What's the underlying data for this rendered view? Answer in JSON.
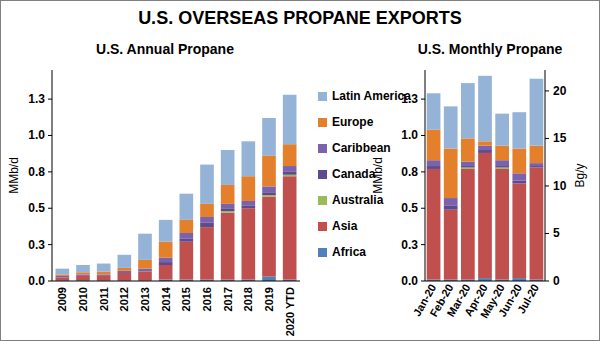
{
  "title": "U.S. OVERSEAS PROPANE EXPORTS",
  "chart_data": [
    {
      "type": "bar",
      "stacked": true,
      "title": "U.S. Annual Propane",
      "ylabel": "MMb/d",
      "grid": false,
      "legend": "right",
      "categories": [
        "2009",
        "2010",
        "2011",
        "2012",
        "2013",
        "2014",
        "2015",
        "2016",
        "2017",
        "2018",
        "2019",
        "2020 YTD"
      ],
      "series": [
        {
          "name": "Africa",
          "color": "#4f81bd",
          "values": [
            0.005,
            0.005,
            0.005,
            0.005,
            0.005,
            0.01,
            0.01,
            0.01,
            0.01,
            0.01,
            0.03,
            0.01
          ]
        },
        {
          "name": "Asia",
          "color": "#c0504d",
          "values": [
            0.02,
            0.03,
            0.03,
            0.05,
            0.06,
            0.1,
            0.26,
            0.36,
            0.46,
            0.49,
            0.55,
            0.71
          ]
        },
        {
          "name": "Australia",
          "color": "#9bbb59",
          "values": [
            0,
            0,
            0,
            0,
            0,
            0,
            0,
            0,
            0.01,
            0,
            0.01,
            0.01
          ]
        },
        {
          "name": "Canada",
          "color": "#5f4b8b",
          "values": [
            0,
            0,
            0,
            0,
            0,
            0.02,
            0.02,
            0.03,
            0.02,
            0.02,
            0.02,
            0.02
          ]
        },
        {
          "name": "Caribbean",
          "color": "#7a62ac",
          "values": [
            0.01,
            0.01,
            0.01,
            0.015,
            0.02,
            0.03,
            0.04,
            0.04,
            0.03,
            0.03,
            0.04,
            0.04
          ]
        },
        {
          "name": "Europe",
          "color": "#e47f2b",
          "values": [
            0.01,
            0.015,
            0.02,
            0.02,
            0.06,
            0.11,
            0.09,
            0.09,
            0.13,
            0.17,
            0.21,
            0.15
          ]
        },
        {
          "name": "Latin America",
          "color": "#95b3d7",
          "values": [
            0.04,
            0.05,
            0.055,
            0.09,
            0.18,
            0.15,
            0.18,
            0.27,
            0.24,
            0.24,
            0.26,
            0.34
          ]
        }
      ],
      "ylim": [
        0,
        1.45
      ],
      "yticks": [
        {
          "value": 0,
          "label": "0.0"
        },
        {
          "value": 0.25,
          "label": "0.3"
        },
        {
          "value": 0.5,
          "label": "0.5"
        },
        {
          "value": 0.75,
          "label": "0.8"
        },
        {
          "value": 1.0,
          "label": "1.0"
        },
        {
          "value": 1.25,
          "label": "1.3"
        }
      ]
    },
    {
      "type": "bar",
      "stacked": true,
      "title": "U.S. Monthly Propane",
      "ylabel": "MMb/d",
      "y2label": "Bg/y",
      "grid": false,
      "categories": [
        "Jan-20",
        "Feb-20",
        "Mar-20",
        "Apr-20",
        "May-20",
        "Jun-20",
        "Jul-20"
      ],
      "series": [
        {
          "color": "#4f81bd",
          "values": [
            0.01,
            0.01,
            0.01,
            0.02,
            0.01,
            0.02,
            0.01
          ]
        },
        {
          "color": "#c0504d",
          "values": [
            0.76,
            0.48,
            0.76,
            0.86,
            0.76,
            0.65,
            0.77
          ]
        },
        {
          "color": "#9bbb59",
          "values": [
            0,
            0,
            0.01,
            0,
            0.01,
            0,
            0
          ]
        },
        {
          "color": "#5f4b8b",
          "values": [
            0.02,
            0.03,
            0.01,
            0.02,
            0.01,
            0.02,
            0.01
          ]
        },
        {
          "color": "#7a62ac",
          "values": [
            0.04,
            0.05,
            0.03,
            0.03,
            0.04,
            0.05,
            0.02
          ]
        },
        {
          "color": "#e47f2b",
          "values": [
            0.21,
            0.34,
            0.16,
            0.03,
            0.1,
            0.17,
            0.12
          ]
        },
        {
          "color": "#95b3d7",
          "values": [
            0.25,
            0.29,
            0.38,
            0.45,
            0.22,
            0.25,
            0.46
          ]
        }
      ],
      "ylim": [
        0,
        1.45
      ],
      "yticks": [
        {
          "value": 0,
          "label": "0.0"
        },
        {
          "value": 0.25,
          "label": "0.3"
        },
        {
          "value": 0.5,
          "label": "0.5"
        },
        {
          "value": 0.75,
          "label": "0.8"
        },
        {
          "value": 1.0,
          "label": "1.0"
        },
        {
          "value": 1.25,
          "label": "1.3"
        }
      ],
      "y2lim": [
        0,
        22.2
      ],
      "y2ticks": [
        0,
        5,
        10,
        15,
        20
      ]
    }
  ]
}
